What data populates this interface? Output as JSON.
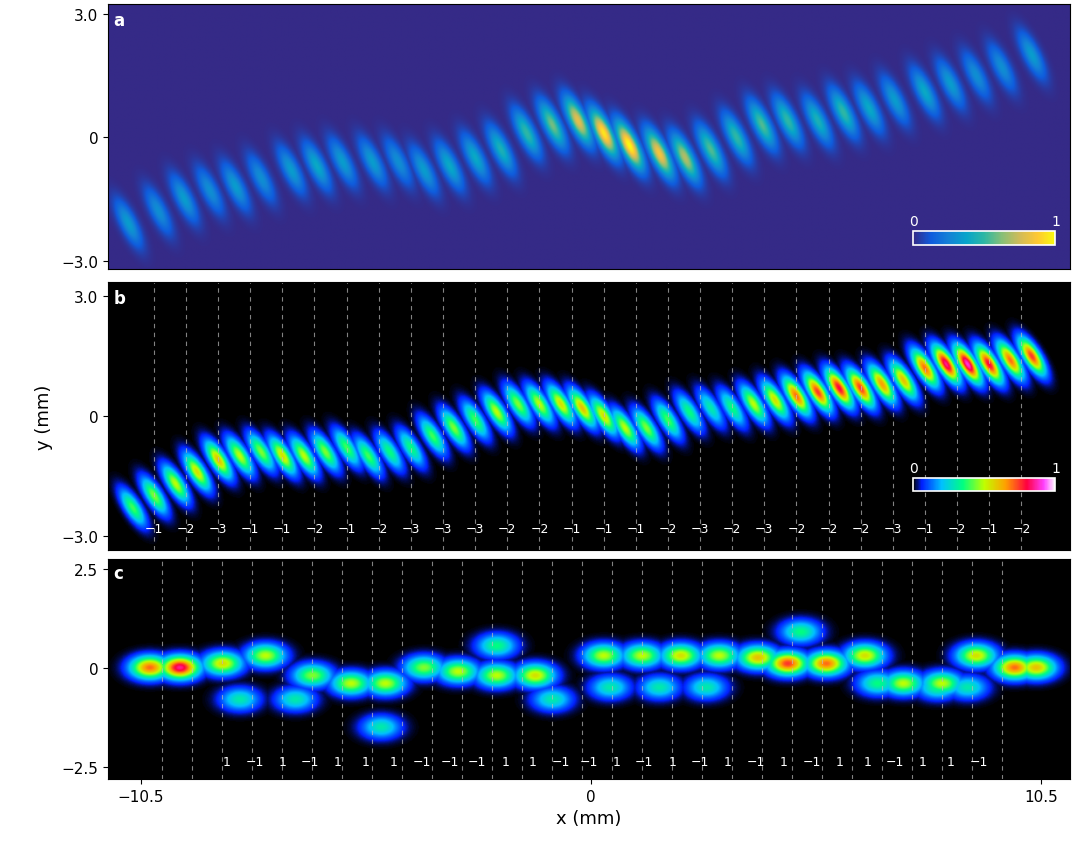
{
  "chart_data": [
    {
      "type": "heatmap",
      "label": "a",
      "tick_labels": "y",
      "xlim": [
        -11.27,
        11.18
      ],
      "ylim": [
        -3.2,
        3.23
      ],
      "yticks": [
        {
          "value": -3.0,
          "label": "−3.0"
        },
        0,
        {
          "value": 3.0,
          "label": "3.0"
        }
      ],
      "spots": {
        "x": [
          -10.8,
          -10.1,
          -9.5,
          -8.9,
          -8.3,
          -7.7,
          -7.0,
          -6.4,
          -5.8,
          -5.1,
          -4.5,
          -3.9,
          -3.3,
          -2.7,
          -2.1,
          -1.5,
          -0.9,
          -0.3,
          0.3,
          0.9,
          1.6,
          2.2,
          2.8,
          3.4,
          4.0,
          4.6,
          5.3,
          5.9,
          6.5,
          7.1,
          7.8,
          8.4,
          9.0,
          9.6,
          10.3
        ],
        "y": [
          -2.1,
          -1.8,
          -1.5,
          -1.3,
          -1.2,
          -1.0,
          -0.8,
          -0.7,
          -0.6,
          -0.6,
          -0.6,
          -0.8,
          -0.7,
          -0.5,
          -0.3,
          0.1,
          0.3,
          0.4,
          0.1,
          -0.2,
          -0.4,
          -0.5,
          -0.3,
          0.0,
          0.3,
          0.4,
          0.4,
          0.6,
          0.7,
          0.9,
          1.1,
          1.3,
          1.5,
          1.7,
          2.0
        ],
        "values": [
          0.35,
          0.3,
          0.35,
          0.3,
          0.35,
          0.3,
          0.35,
          0.4,
          0.35,
          0.35,
          0.3,
          0.35,
          0.4,
          0.4,
          0.45,
          0.5,
          0.6,
          0.8,
          0.95,
          1.0,
          0.85,
          0.7,
          0.55,
          0.5,
          0.55,
          0.5,
          0.45,
          0.5,
          0.4,
          0.35,
          0.4,
          0.35,
          0.3,
          0.3,
          0.35
        ]
      },
      "colorbar": {
        "range": [
          0,
          1
        ],
        "ticks": [
          0,
          1
        ]
      }
    },
    {
      "type": "heatmap",
      "label": "b",
      "tick_labels": "y",
      "ylabel": "y (mm)",
      "xlim": [
        -11.27,
        11.18
      ],
      "ylim": [
        -3.35,
        3.35
      ],
      "yticks": [
        {
          "value": -3.0,
          "label": "−3.0"
        },
        0,
        {
          "value": 3.0,
          "label": "3.0"
        }
      ],
      "spots": {
        "x": [
          -10.7,
          -10.2,
          -9.7,
          -9.2,
          -8.7,
          -8.2,
          -7.7,
          -7.2,
          -6.7,
          -6.2,
          -5.7,
          -5.2,
          -4.7,
          -4.2,
          -3.7,
          -3.2,
          -2.7,
          -2.2,
          -1.7,
          -1.2,
          -0.7,
          -0.2,
          0.3,
          0.8,
          1.3,
          1.8,
          2.3,
          2.8,
          3.3,
          3.8,
          4.3,
          4.8,
          5.3,
          5.8,
          6.3,
          6.8,
          7.3,
          7.8,
          8.3,
          8.8,
          9.3,
          9.8,
          10.3
        ],
        "y": [
          -2.3,
          -2.0,
          -1.7,
          -1.4,
          -1.1,
          -1.0,
          -0.9,
          -1.0,
          -1.0,
          -0.9,
          -0.8,
          -1.0,
          -0.9,
          -0.8,
          -0.5,
          -0.3,
          -0.1,
          0.1,
          0.3,
          0.3,
          0.3,
          0.2,
          0.0,
          -0.3,
          -0.3,
          -0.1,
          0.1,
          0.2,
          0.2,
          0.3,
          0.4,
          0.5,
          0.6,
          0.7,
          0.7,
          0.8,
          0.9,
          1.2,
          1.3,
          1.3,
          1.3,
          1.4,
          1.5
        ],
        "values": [
          0.4,
          0.45,
          0.5,
          0.55,
          0.6,
          0.5,
          0.45,
          0.55,
          0.5,
          0.45,
          0.4,
          0.4,
          0.35,
          0.35,
          0.4,
          0.45,
          0.4,
          0.5,
          0.45,
          0.5,
          0.55,
          0.6,
          0.55,
          0.5,
          0.45,
          0.4,
          0.35,
          0.3,
          0.35,
          0.5,
          0.55,
          0.7,
          0.75,
          0.8,
          0.75,
          0.65,
          0.6,
          0.7,
          0.85,
          0.9,
          0.8,
          0.7,
          0.75
        ]
      },
      "dividers": [
        -10.2,
        -9.45,
        -8.7,
        -7.95,
        -7.2,
        -6.45,
        -5.7,
        -4.95,
        -4.2,
        -3.45,
        -2.7,
        -1.95,
        -1.2,
        -0.45,
        0.3,
        1.05,
        1.8,
        2.55,
        3.3,
        4.05,
        4.8,
        5.55,
        6.3,
        7.05,
        7.8,
        8.55,
        9.3,
        10.05
      ],
      "labels": {
        "x": [
          -10.2,
          -9.45,
          -8.7,
          -7.95,
          -7.2,
          -6.45,
          -5.7,
          -4.95,
          -4.2,
          -3.45,
          -2.7,
          -1.95,
          -1.2,
          -0.45,
          0.3,
          1.05,
          1.8,
          2.55,
          3.3,
          4.05,
          4.8,
          5.55,
          6.3,
          7.05,
          7.8,
          8.55,
          9.3,
          10.05
        ],
        "texts": [
          "−1",
          "−2",
          "−3",
          "−1",
          "−1",
          "−2",
          "−1",
          "−2",
          "−3",
          "−3",
          "−3",
          "−2",
          "−2",
          "−1",
          "−1",
          "−1",
          "−2",
          "−3",
          "−2",
          "−3",
          "−2",
          "−2",
          "−2",
          "−3",
          "−1",
          "−2",
          "−1",
          "−2"
        ]
      },
      "colorbar": {
        "range": [
          0,
          1
        ],
        "ticks": [
          0,
          1
        ]
      }
    },
    {
      "type": "heatmap",
      "label": "c",
      "xlabel": "x (mm)",
      "xlim": [
        -11.27,
        11.18
      ],
      "ylim": [
        -2.8,
        2.75
      ],
      "xticks": [
        {
          "value": -10.5,
          "label": "−10.5"
        },
        0,
        10.5
      ],
      "yticks": [
        {
          "value": -2.5,
          "label": "−2.5"
        },
        0,
        2.5
      ],
      "spots": {
        "x": [
          -10.3,
          -9.6,
          -8.6,
          -7.6,
          -6.5,
          -5.6,
          -4.8,
          -3.9,
          -3.1,
          -2.2,
          -1.3,
          0.3,
          1.2,
          2.1,
          3.0,
          3.9,
          4.6,
          5.5,
          6.4,
          7.3,
          8.2,
          9.0,
          9.9,
          10.4,
          -8.2,
          -6.9,
          -4.9,
          -2.2,
          -0.9,
          0.45,
          1.6,
          2.7,
          4.9,
          6.7,
          8.1,
          8.8
        ],
        "y": [
          0.0,
          0.0,
          0.1,
          0.3,
          -0.2,
          -0.4,
          -0.4,
          0.0,
          -0.1,
          -0.2,
          -0.2,
          0.3,
          0.3,
          0.3,
          0.3,
          0.25,
          0.1,
          0.1,
          0.3,
          -0.4,
          -0.4,
          0.3,
          0.0,
          0.0,
          -0.8,
          -0.8,
          -1.5,
          0.55,
          -0.8,
          -0.5,
          -0.5,
          -0.5,
          0.9,
          -0.4,
          -0.5,
          -0.5
        ],
        "values": [
          0.7,
          0.85,
          0.55,
          0.5,
          0.45,
          0.5,
          0.5,
          0.45,
          0.5,
          0.5,
          0.55,
          0.5,
          0.5,
          0.55,
          0.5,
          0.6,
          0.75,
          0.7,
          0.55,
          0.5,
          0.5,
          0.55,
          0.7,
          0.6,
          0.3,
          0.3,
          0.3,
          0.35,
          0.3,
          0.3,
          0.3,
          0.3,
          0.35,
          0.35,
          0.35,
          0.3
        ]
      },
      "dividers": [
        -10.0,
        -9.3,
        -8.6,
        -7.9,
        -7.2,
        -6.5,
        -5.8,
        -5.1,
        -4.4,
        -3.7,
        -3.0,
        -2.3,
        -1.6,
        -0.9,
        -0.2,
        0.5,
        1.2,
        1.9,
        2.6,
        3.3,
        4.0,
        4.7,
        5.4,
        6.1,
        6.8,
        7.5,
        8.2,
        8.9,
        9.6
      ],
      "labels": {
        "x": [
          -8.5,
          -7.85,
          -7.2,
          -6.55,
          -5.9,
          -5.25,
          -4.6,
          -3.95,
          -3.3,
          -2.65,
          -2.0,
          -1.35,
          -0.7,
          -0.05,
          0.6,
          1.25,
          1.9,
          2.55,
          3.2,
          3.85,
          4.5,
          5.15,
          5.8,
          6.45,
          7.1,
          7.75,
          8.4,
          9.05
        ],
        "texts": [
          "1",
          "−1",
          "1",
          "−1",
          "1",
          "1",
          "1",
          "−1",
          "−1",
          "−1",
          "1",
          "1",
          "−1",
          "−1",
          "1",
          "−1",
          "1",
          "−1",
          "1",
          "−1",
          "1",
          "−1",
          "1",
          "1",
          "−1",
          "1",
          "1",
          "−1"
        ]
      }
    }
  ]
}
